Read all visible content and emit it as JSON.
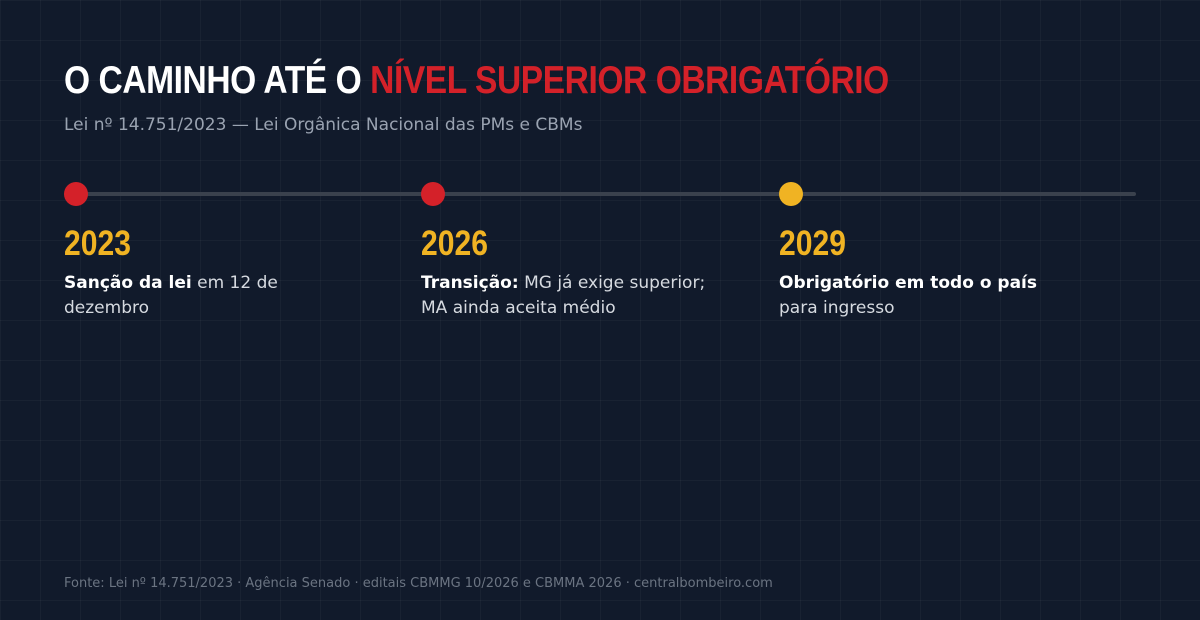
{
  "header": {
    "title_white": "O CAMINHO ATÉ O",
    "title_red": "NÍVEL SUPERIOR OBRIGATÓRIO",
    "subtitle": "Lei nº 14.751/2023 — Lei Orgânica Nacional das PMs e CBMs"
  },
  "colors": {
    "background": "#111a2b",
    "accent_red": "#d42129",
    "accent_yellow": "#f0b323",
    "track": "#3a414d"
  },
  "milestones": [
    {
      "year": "2023",
      "bold": "Sanção da lei",
      "text": " em 12 de dezembro",
      "dot_color": "#d42129"
    },
    {
      "year": "2026",
      "bold": "Transição:",
      "text": " MG já exige superior; MA ainda aceita médio",
      "dot_color": "#d42129"
    },
    {
      "year": "2029",
      "bold": "Obrigatório em todo o país",
      "text": " para ingresso",
      "dot_color": "#f0b323"
    }
  ],
  "footer": {
    "source": "Fonte: Lei nº 14.751/2023 · Agência Senado · editais CBMMG 10/2026 e CBMMA 2026 · centralbombeiro.com"
  }
}
